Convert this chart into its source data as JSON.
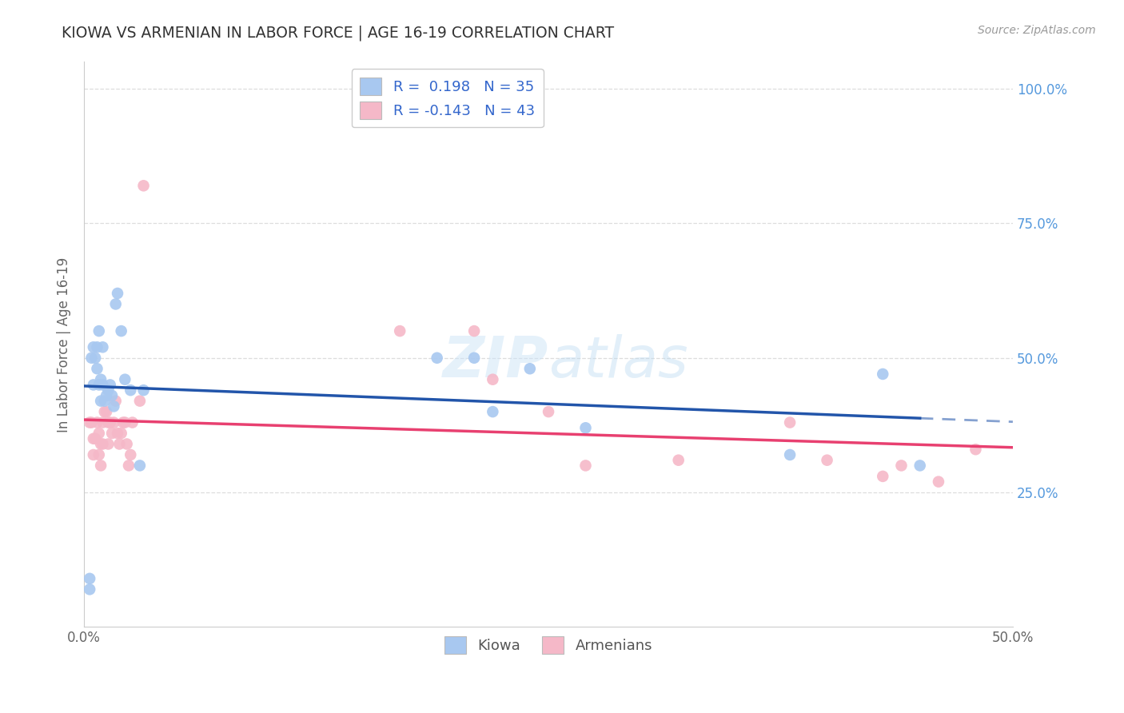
{
  "title": "KIOWA VS ARMENIAN IN LABOR FORCE | AGE 16-19 CORRELATION CHART",
  "source": "Source: ZipAtlas.com",
  "ylabel": "In Labor Force | Age 16-19",
  "xlim": [
    0.0,
    0.5
  ],
  "ylim": [
    0.0,
    1.05
  ],
  "xtick_labels": [
    "0.0%",
    "",
    "",
    "",
    "",
    "50.0%"
  ],
  "xtick_vals": [
    0.0,
    0.1,
    0.2,
    0.3,
    0.4,
    0.5
  ],
  "ytick_vals": [
    0.25,
    0.5,
    0.75,
    1.0
  ],
  "ytick_right_labels": [
    "25.0%",
    "50.0%",
    "75.0%",
    "100.0%"
  ],
  "background_color": "#ffffff",
  "grid_color": "#dddddd",
  "kiowa_color": "#a8c8f0",
  "armenian_color": "#f5b8c8",
  "kiowa_line_color": "#2255aa",
  "armenian_line_color": "#e84070",
  "kiowa_R": 0.198,
  "kiowa_N": 35,
  "armenian_R": -0.143,
  "armenian_N": 43,
  "legend_label_kiowa": "Kiowa",
  "legend_label_armenian": "Armenians",
  "kiowa_x": [
    0.003,
    0.003,
    0.004,
    0.005,
    0.005,
    0.006,
    0.007,
    0.007,
    0.008,
    0.008,
    0.009,
    0.009,
    0.01,
    0.01,
    0.011,
    0.012,
    0.013,
    0.014,
    0.015,
    0.016,
    0.017,
    0.018,
    0.02,
    0.022,
    0.025,
    0.03,
    0.032,
    0.19,
    0.21,
    0.22,
    0.24,
    0.27,
    0.38,
    0.43,
    0.45
  ],
  "kiowa_y": [
    0.09,
    0.07,
    0.5,
    0.52,
    0.45,
    0.5,
    0.52,
    0.48,
    0.55,
    0.45,
    0.42,
    0.46,
    0.52,
    0.45,
    0.42,
    0.43,
    0.44,
    0.45,
    0.43,
    0.41,
    0.6,
    0.62,
    0.55,
    0.46,
    0.44,
    0.3,
    0.44,
    0.5,
    0.5,
    0.4,
    0.48,
    0.37,
    0.32,
    0.47,
    0.3
  ],
  "armenian_x": [
    0.003,
    0.004,
    0.005,
    0.005,
    0.006,
    0.007,
    0.008,
    0.008,
    0.009,
    0.009,
    0.01,
    0.01,
    0.011,
    0.012,
    0.013,
    0.013,
    0.014,
    0.015,
    0.016,
    0.017,
    0.018,
    0.019,
    0.02,
    0.021,
    0.022,
    0.023,
    0.024,
    0.025,
    0.026,
    0.03,
    0.032,
    0.17,
    0.21,
    0.22,
    0.25,
    0.27,
    0.32,
    0.38,
    0.4,
    0.43,
    0.44,
    0.46,
    0.48
  ],
  "armenian_y": [
    0.38,
    0.38,
    0.35,
    0.32,
    0.35,
    0.38,
    0.36,
    0.32,
    0.34,
    0.3,
    0.38,
    0.34,
    0.4,
    0.4,
    0.38,
    0.34,
    0.38,
    0.36,
    0.38,
    0.42,
    0.36,
    0.34,
    0.36,
    0.38,
    0.38,
    0.34,
    0.3,
    0.32,
    0.38,
    0.42,
    0.82,
    0.55,
    0.55,
    0.46,
    0.4,
    0.3,
    0.31,
    0.38,
    0.31,
    0.28,
    0.3,
    0.27,
    0.33
  ]
}
